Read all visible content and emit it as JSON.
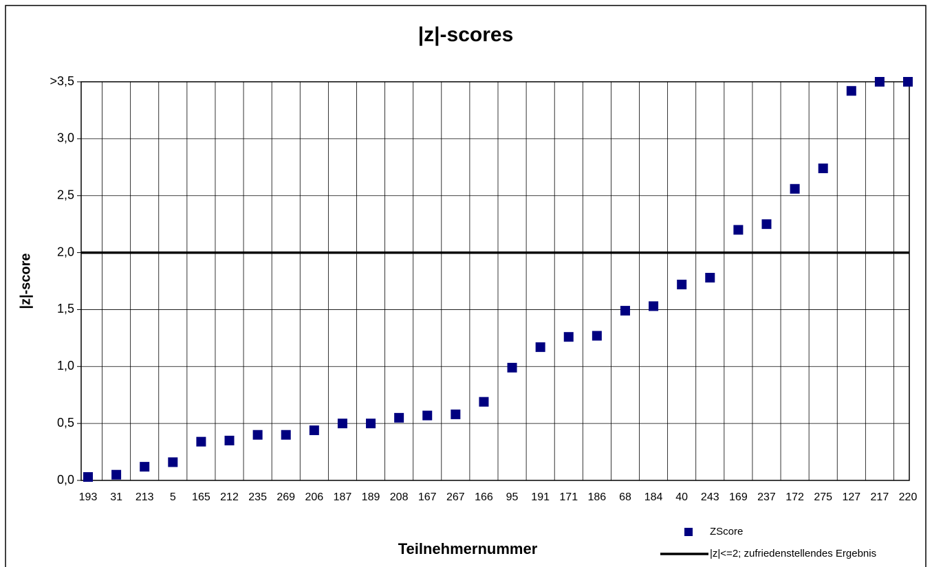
{
  "chart_data": {
    "type": "scatter",
    "title": "|z|-scores",
    "xlabel": "Teilnehmernummer",
    "ylabel": "|z|-score",
    "categories": [
      "193",
      "31",
      "213",
      "5",
      "165",
      "212",
      "235",
      "269",
      "206",
      "187",
      "189",
      "208",
      "167",
      "267",
      "166",
      "95",
      "191",
      "171",
      "186",
      "68",
      "184",
      "40",
      "243",
      "169",
      "237",
      "172",
      "275",
      "127",
      "217",
      "220"
    ],
    "series": [
      {
        "name": "ZScore",
        "color": "#000080",
        "values": [
          0.03,
          0.05,
          0.12,
          0.16,
          0.34,
          0.35,
          0.4,
          0.4,
          0.44,
          0.5,
          0.5,
          0.55,
          0.57,
          0.58,
          0.69,
          0.99,
          1.17,
          1.26,
          1.27,
          1.49,
          1.53,
          1.72,
          1.78,
          2.2,
          2.25,
          2.56,
          2.74,
          3.42,
          3.5,
          3.5
        ]
      }
    ],
    "threshold": {
      "name": "|z|<=2; zufriedenstellendes Ergebnis",
      "value": 2,
      "color": "#000000"
    },
    "ylim": [
      0,
      3.5
    ],
    "yticks": [
      {
        "value": 0,
        "label": "0,0"
      },
      {
        "value": 0.5,
        "label": "0,5"
      },
      {
        "value": 1,
        "label": "1,0"
      },
      {
        "value": 1.5,
        "label": "1,5"
      },
      {
        "value": 2,
        "label": "2,0"
      },
      {
        "value": 2.5,
        "label": "2,5"
      },
      {
        "value": 3,
        "label": "3,0"
      },
      {
        "value": 3.5,
        "label": ">3,5"
      }
    ],
    "grid": true,
    "legend": "bottom-right"
  }
}
